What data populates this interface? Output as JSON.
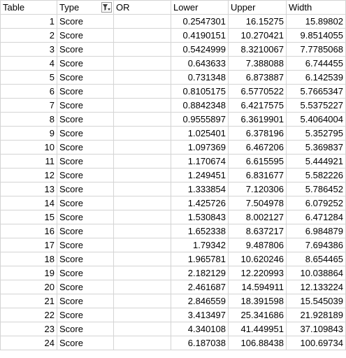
{
  "headers": {
    "table": "Table",
    "type": "Type",
    "or": "OR",
    "lower": "Lower",
    "upper": "Upper",
    "width": "Width"
  },
  "filter_icon": "filter-funnel-icon",
  "rows": [
    {
      "table": "1",
      "type": "Score",
      "or": "",
      "lower": "0.2547301",
      "upper": "16.15275",
      "width": "15.89802"
    },
    {
      "table": "2",
      "type": "Score",
      "or": "",
      "lower": "0.4190151",
      "upper": "10.270421",
      "width": "9.8514055"
    },
    {
      "table": "3",
      "type": "Score",
      "or": "",
      "lower": "0.5424999",
      "upper": "8.3210067",
      "width": "7.7785068"
    },
    {
      "table": "4",
      "type": "Score",
      "or": "",
      "lower": "0.643633",
      "upper": "7.388088",
      "width": "6.744455"
    },
    {
      "table": "5",
      "type": "Score",
      "or": "",
      "lower": "0.731348",
      "upper": "6.873887",
      "width": "6.142539"
    },
    {
      "table": "6",
      "type": "Score",
      "or": "",
      "lower": "0.8105175",
      "upper": "6.5770522",
      "width": "5.7665347"
    },
    {
      "table": "7",
      "type": "Score",
      "or": "",
      "lower": "0.8842348",
      "upper": "6.4217575",
      "width": "5.5375227"
    },
    {
      "table": "8",
      "type": "Score",
      "or": "",
      "lower": "0.9555897",
      "upper": "6.3619901",
      "width": "5.4064004"
    },
    {
      "table": "9",
      "type": "Score",
      "or": "",
      "lower": "1.025401",
      "upper": "6.378196",
      "width": "5.352795"
    },
    {
      "table": "10",
      "type": "Score",
      "or": "",
      "lower": "1.097369",
      "upper": "6.467206",
      "width": "5.369837"
    },
    {
      "table": "11",
      "type": "Score",
      "or": "",
      "lower": "1.170674",
      "upper": "6.615595",
      "width": "5.444921"
    },
    {
      "table": "12",
      "type": "Score",
      "or": "",
      "lower": "1.249451",
      "upper": "6.831677",
      "width": "5.582226"
    },
    {
      "table": "13",
      "type": "Score",
      "or": "",
      "lower": "1.333854",
      "upper": "7.120306",
      "width": "5.786452"
    },
    {
      "table": "14",
      "type": "Score",
      "or": "",
      "lower": "1.425726",
      "upper": "7.504978",
      "width": "6.079252"
    },
    {
      "table": "15",
      "type": "Score",
      "or": "",
      "lower": "1.530843",
      "upper": "8.002127",
      "width": "6.471284"
    },
    {
      "table": "16",
      "type": "Score",
      "or": "",
      "lower": "1.652338",
      "upper": "8.637217",
      "width": "6.984879"
    },
    {
      "table": "17",
      "type": "Score",
      "or": "",
      "lower": "1.79342",
      "upper": "9.487806",
      "width": "7.694386"
    },
    {
      "table": "18",
      "type": "Score",
      "or": "",
      "lower": "1.965781",
      "upper": "10.620246",
      "width": "8.654465"
    },
    {
      "table": "19",
      "type": "Score",
      "or": "",
      "lower": "2.182129",
      "upper": "12.220993",
      "width": "10.038864"
    },
    {
      "table": "20",
      "type": "Score",
      "or": "",
      "lower": "2.461687",
      "upper": "14.594911",
      "width": "12.133224"
    },
    {
      "table": "21",
      "type": "Score",
      "or": "",
      "lower": "2.846559",
      "upper": "18.391598",
      "width": "15.545039"
    },
    {
      "table": "22",
      "type": "Score",
      "or": "",
      "lower": "3.413497",
      "upper": "25.341686",
      "width": "21.928189"
    },
    {
      "table": "23",
      "type": "Score",
      "or": "",
      "lower": "4.340108",
      "upper": "41.449951",
      "width": "37.109843"
    },
    {
      "table": "24",
      "type": "Score",
      "or": "",
      "lower": "6.187038",
      "upper": "106.88438",
      "width": "100.69734"
    }
  ]
}
